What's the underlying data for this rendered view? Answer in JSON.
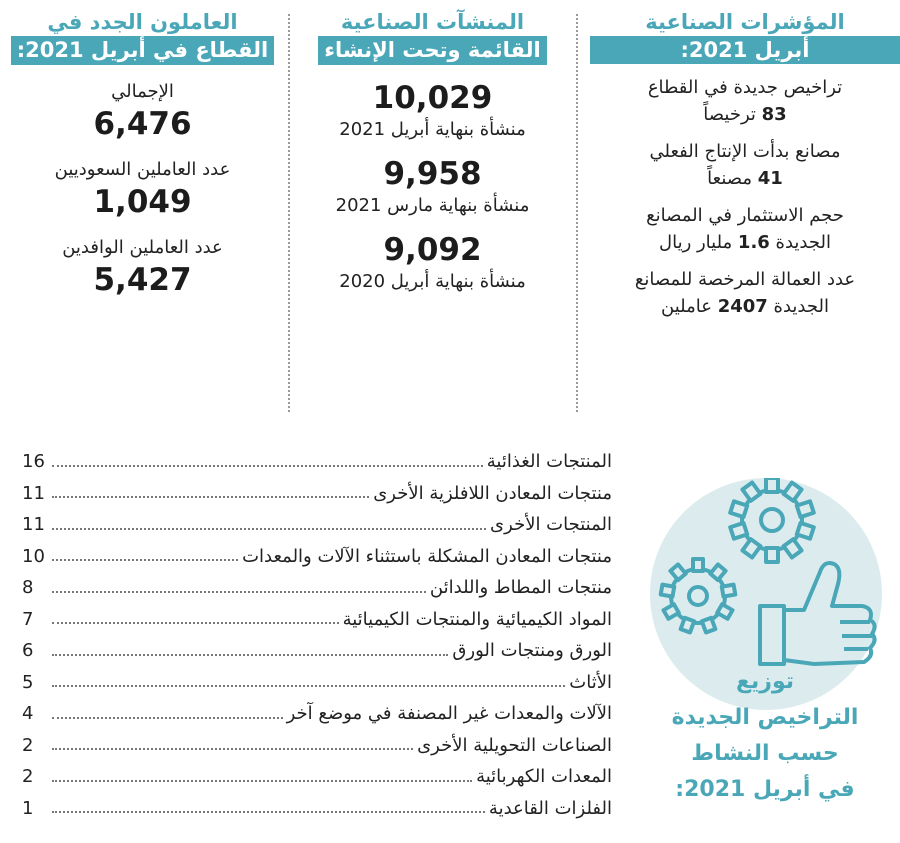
{
  "indicators": {
    "title_line1": "المؤشرات الصناعية",
    "title_line2": "أبريل 2021:",
    "items": [
      {
        "l1": "تراخيص جديدة في القطاع",
        "l2_num": "83",
        "l2_text": " ترخيصاً"
      },
      {
        "l1": "مصانع بدأت الإنتاج الفعلي",
        "l2_num": "41",
        "l2_text": " مصنعاً"
      },
      {
        "l1": "حجم الاستثمار في المصانع",
        "l2_pre": "الجديدة ",
        "l2_num": "1.6",
        "l2_text": " مليار ريال"
      },
      {
        "l1": "عدد العمالة المرخصة للمصانع",
        "l2_pre": "الجديدة ",
        "l2_num": "2407",
        "l2_text": " عاملين"
      }
    ]
  },
  "facilities": {
    "title_line1": "المنشآت الصناعية",
    "title_line2": "القائمة وتحت الإنشاء",
    "items": [
      {
        "value": "10,029",
        "label": "منشأة بنهاية أبريل 2021"
      },
      {
        "value": "9,958",
        "label": "منشأة بنهاية مارس 2021"
      },
      {
        "value": "9,092",
        "label": "منشأة بنهاية أبريل 2020"
      }
    ]
  },
  "workers": {
    "title_line1": "العاملون الجدد في",
    "title_line2": "القطاع في أبريل 2021:",
    "items": [
      {
        "label": "الإجمالي",
        "value": "6,476"
      },
      {
        "label": "عدد العاملين السعوديين",
        "value": "1,049"
      },
      {
        "label": "عدد العاملين الوافدين",
        "value": "5,427"
      }
    ]
  },
  "distribution": {
    "title": [
      "توزيع",
      "التراخيص الجديدة",
      "حسب النشاط",
      "في أبريل 2021:"
    ],
    "rows": [
      {
        "name": "المنتجات الغذائية",
        "count": "16"
      },
      {
        "name": "منتجات المعادن اللافلزية الأخرى",
        "count": "11"
      },
      {
        "name": "المنتجات الأخرى",
        "count": "11"
      },
      {
        "name": "منتجات المعادن المشكلة باستثناء الآلات والمعدات",
        "count": "10"
      },
      {
        "name": "منتجات المطاط واللدائن",
        "count": "8"
      },
      {
        "name": "المواد الكيميائية والمنتجات الكيميائية",
        "count": "7"
      },
      {
        "name": "الورق ومنتجات الورق",
        "count": "6"
      },
      {
        "name": "الأثاث",
        "count": "5"
      },
      {
        "name": "الآلات والمعدات غير المصنفة في موضع آخر",
        "count": "4"
      },
      {
        "name": "الصناعات التحويلية الأخرى",
        "count": "2"
      },
      {
        "name": "المعدات الكهربائية",
        "count": "2"
      },
      {
        "name": "الفلزات القاعدية",
        "count": "1"
      }
    ],
    "icons": [
      "gears-icon",
      "thumbs-up-icon"
    ]
  },
  "colors": {
    "accent": "#4aa7b8",
    "circle": "#dcecee",
    "text": "#222222"
  }
}
